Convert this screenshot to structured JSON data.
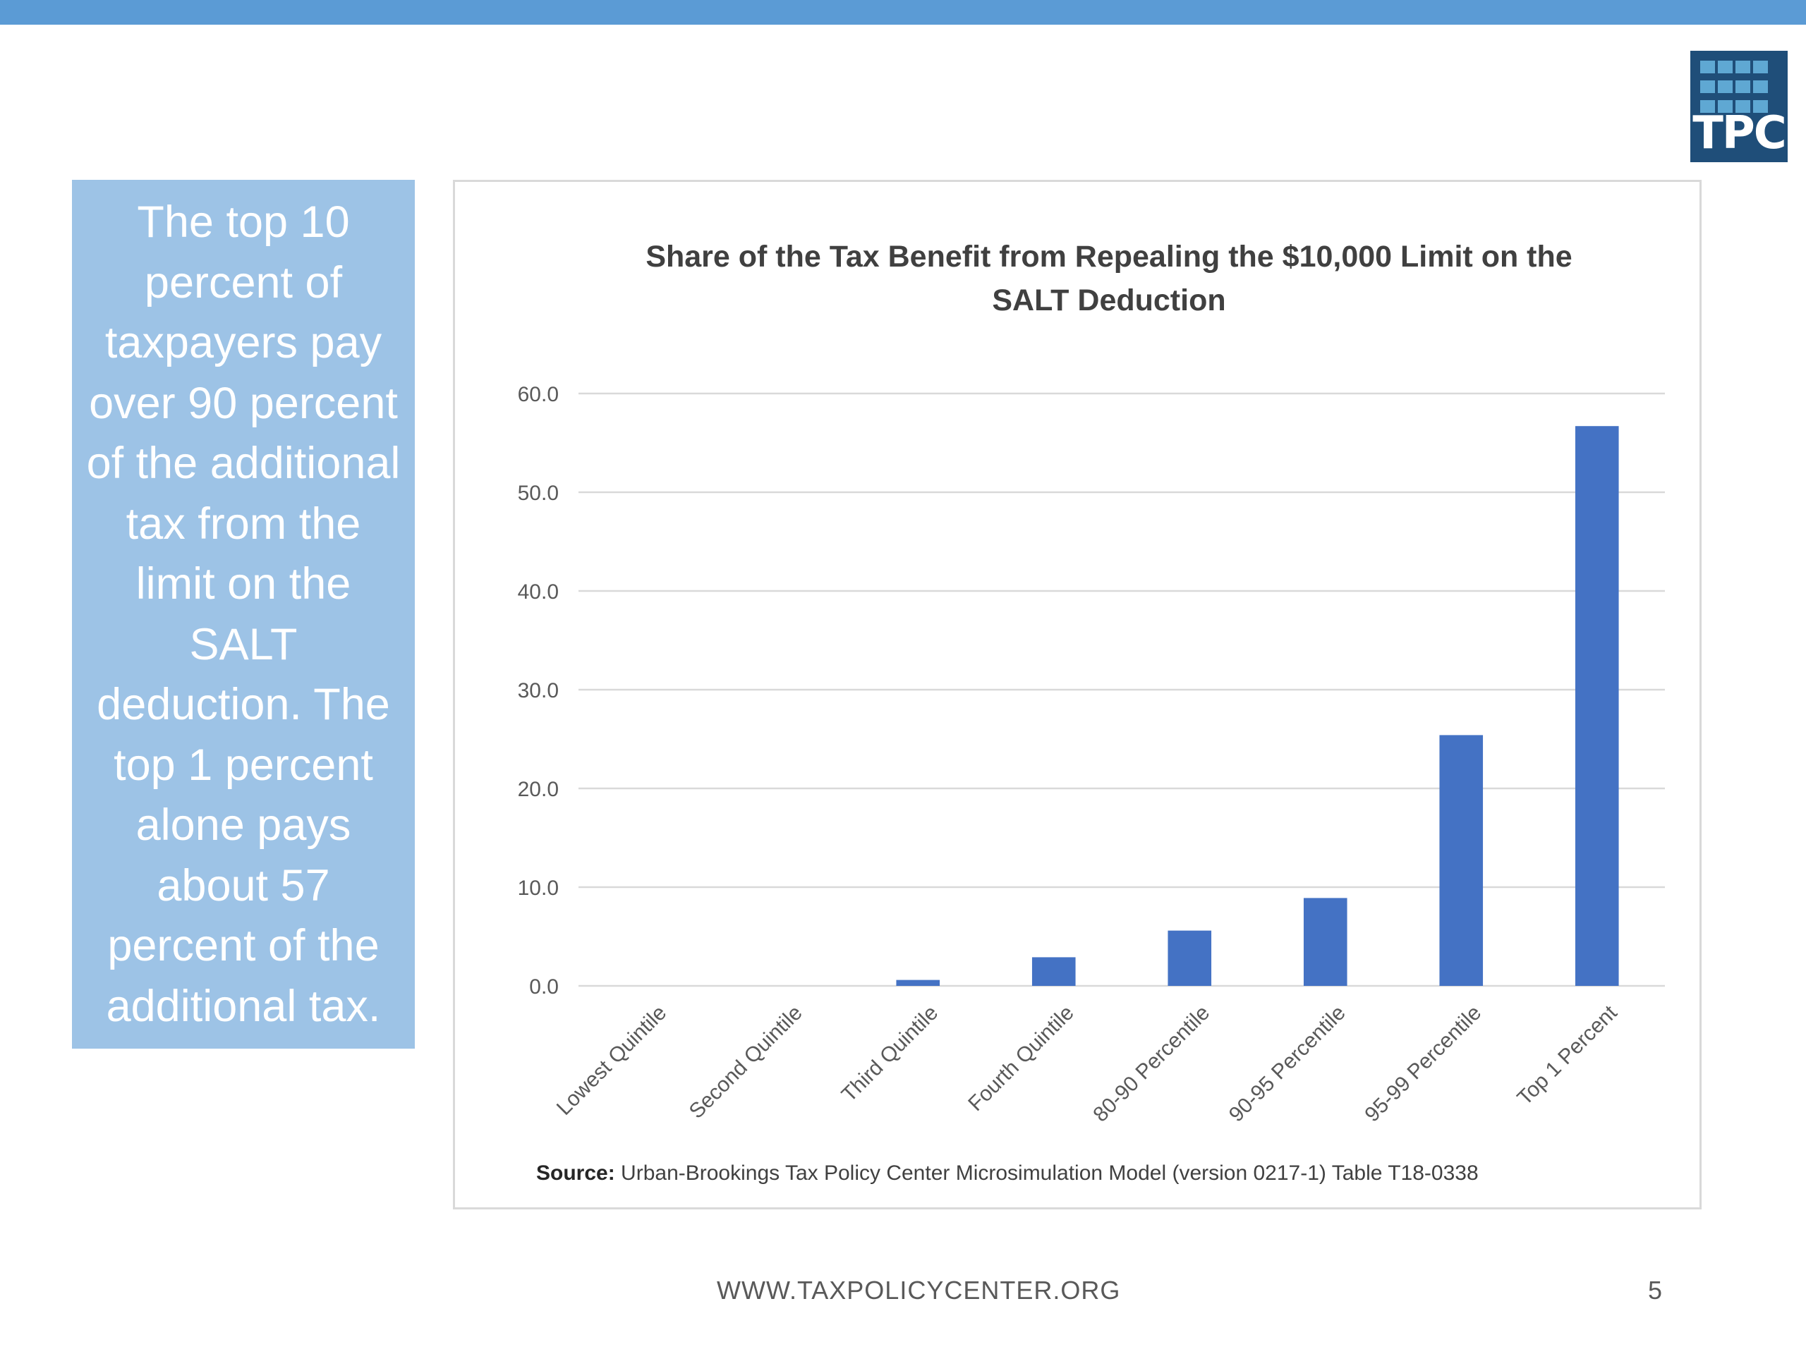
{
  "callout": {
    "text": "The top 10 percent of taxpayers pay over 90 percent of the additional tax from the limit on the SALT deduction. The top 1 percent alone pays about 57 percent of the additional tax."
  },
  "logo": {
    "text": "TPC"
  },
  "chart_data": {
    "type": "bar",
    "title": "Share of the Tax Benefit from Repealing the $10,000 Limit on the SALT Deduction",
    "title_lines": [
      "Share of the Tax Benefit from Repealing the $10,000 Limit on the",
      "SALT Deduction"
    ],
    "xlabel": "",
    "ylabel": "",
    "categories": [
      "Lowest Quintile",
      "Second Quintile",
      "Third Quintile",
      "Fourth Quintile",
      "80-90 Percentile",
      "90-95 Percentile",
      "95-99 Percentile",
      "Top 1 Percent"
    ],
    "values": [
      0.0,
      0.0,
      0.6,
      2.9,
      5.6,
      8.9,
      25.4,
      56.7
    ],
    "ylim": [
      0,
      60
    ],
    "yticks": [
      "0.0",
      "10.0",
      "20.0",
      "30.0",
      "40.0",
      "50.0",
      "60.0"
    ],
    "grid": true,
    "legend": "none",
    "bar_color": "#4472c4"
  },
  "source": {
    "label": "Source:",
    "text": "Urban-Brookings Tax Policy Center Microsimulation Model (version 0217-1) Table T18-0338"
  },
  "footer": {
    "url": "WWW.TAXPOLICYCENTER.ORG",
    "page": "5"
  },
  "colors": {
    "top_bar": "#5b9bd5",
    "callout_bg": "#9dc3e6",
    "logo_bg": "#1f4e79"
  }
}
